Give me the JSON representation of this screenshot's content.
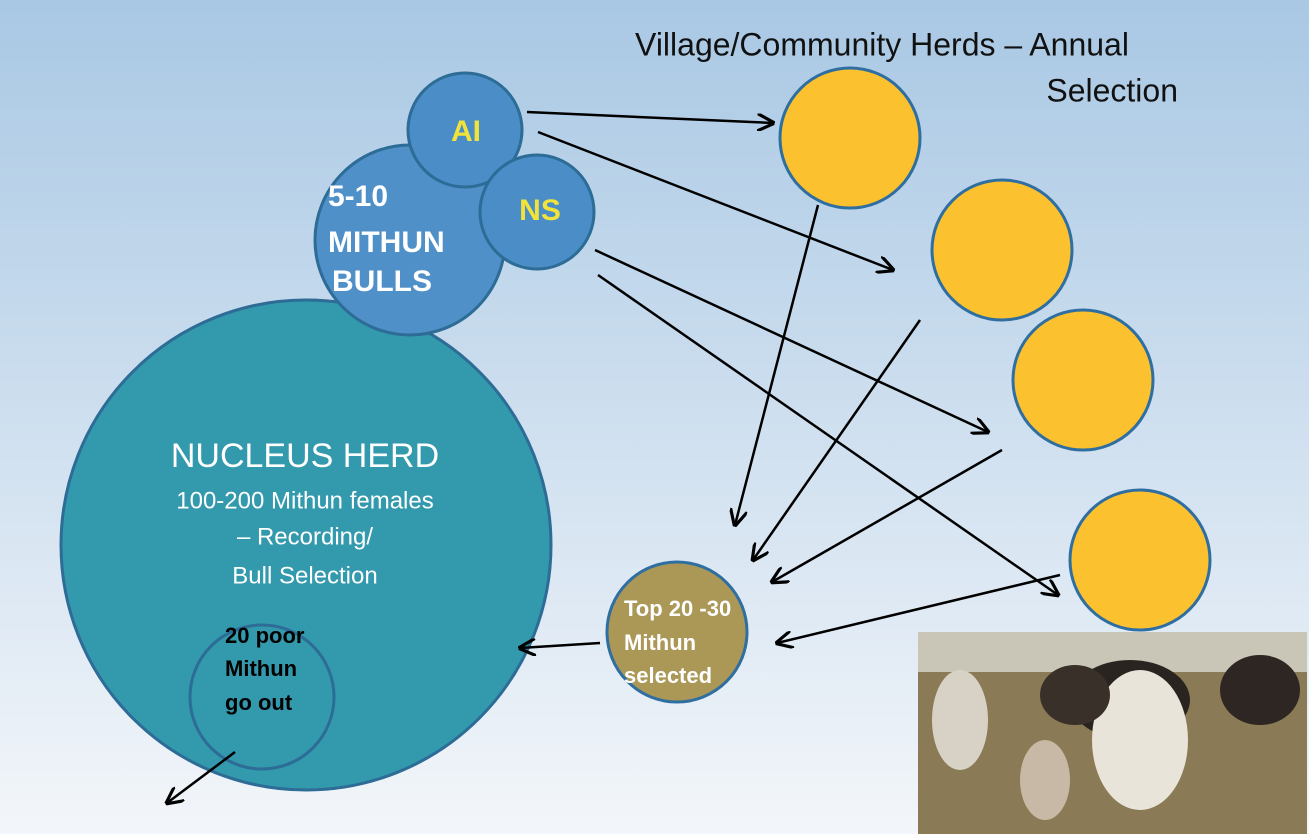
{
  "title": {
    "lines": [
      "Village/Community Herds – Annual",
      "Selection"
    ]
  },
  "nucleus": {
    "lines": [
      "NUCLEUS HERD",
      "100-200 Mithun females",
      "– Recording/",
      "Bull Selection"
    ]
  },
  "bulls": {
    "lines": [
      "5-10",
      "MITHUN",
      "BULLS"
    ]
  },
  "ai": {
    "label": "AI"
  },
  "ns": {
    "label": "NS"
  },
  "poor": {
    "lines": [
      "20 poor",
      "Mithun",
      "go out"
    ]
  },
  "top": {
    "lines": [
      "Top 20 -30",
      "Mithun",
      "selected"
    ]
  }
}
